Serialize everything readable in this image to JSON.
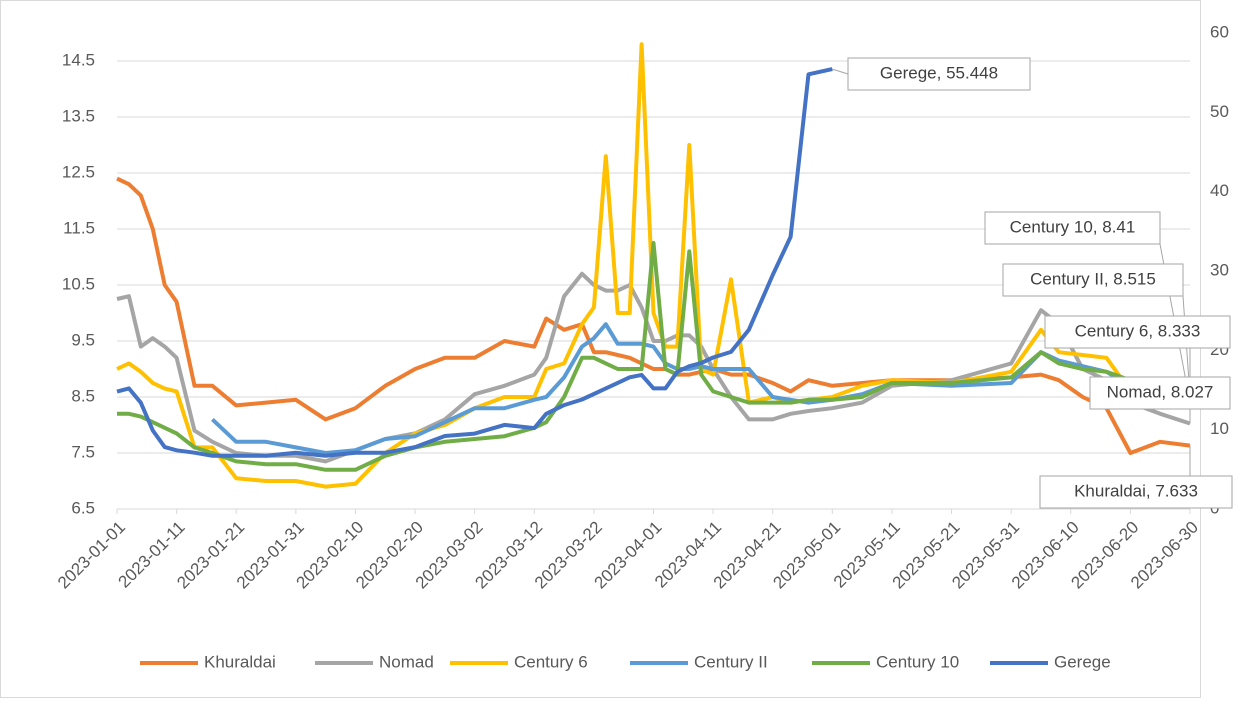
{
  "chart_data": {
    "type": "line",
    "x": [
      "2023-01-01",
      "2023-01-03",
      "2023-01-05",
      "2023-01-07",
      "2023-01-09",
      "2023-01-11",
      "2023-01-14",
      "2023-01-17",
      "2023-01-21",
      "2023-01-26",
      "2023-01-31",
      "2023-02-05",
      "2023-02-10",
      "2023-02-15",
      "2023-02-20",
      "2023-02-25",
      "2023-03-02",
      "2023-03-07",
      "2023-03-12",
      "2023-03-14",
      "2023-03-17",
      "2023-03-20",
      "2023-03-22",
      "2023-03-24",
      "2023-03-26",
      "2023-03-28",
      "2023-03-30",
      "2023-04-01",
      "2023-04-03",
      "2023-04-05",
      "2023-04-07",
      "2023-04-09",
      "2023-04-11",
      "2023-04-14",
      "2023-04-17",
      "2023-04-21",
      "2023-04-24",
      "2023-04-27",
      "2023-05-01",
      "2023-05-06",
      "2023-05-11",
      "2023-05-21",
      "2023-05-31",
      "2023-06-05",
      "2023-06-08",
      "2023-06-12",
      "2023-06-16",
      "2023-06-20",
      "2023-06-25",
      "2023-06-30"
    ],
    "xlim": [
      "2023-01-01",
      "2023-06-30"
    ],
    "xticks": [
      "2023-01-01",
      "2023-01-11",
      "2023-01-21",
      "2023-01-31",
      "2023-02-10",
      "2023-02-20",
      "2023-03-02",
      "2023-03-12",
      "2023-03-22",
      "2023-04-01",
      "2023-04-11",
      "2023-04-21",
      "2023-05-01",
      "2023-05-11",
      "2023-05-21",
      "2023-05-31",
      "2023-06-10",
      "2023-06-20",
      "2023-06-30"
    ],
    "ylim": [
      6.5,
      15
    ],
    "yticks": [
      6.5,
      7.5,
      8.5,
      9.5,
      10.5,
      11.5,
      12.5,
      13.5,
      14.5
    ],
    "y2lim": [
      0,
      60
    ],
    "y2ticks": [
      0,
      10,
      20,
      30,
      40,
      50,
      60
    ],
    "grid": true,
    "legend": "bottom",
    "series": [
      {
        "name": "Khuraldai",
        "color": "#ed7d31",
        "values": [
          12.4,
          12.3,
          12.1,
          11.5,
          10.5,
          10.2,
          8.7,
          8.7,
          8.35,
          8.4,
          8.45,
          8.1,
          8.3,
          8.7,
          9.0,
          9.2,
          9.2,
          9.5,
          9.4,
          9.9,
          9.7,
          9.8,
          9.3,
          9.3,
          9.25,
          9.2,
          9.1,
          9.0,
          9.0,
          8.9,
          8.9,
          8.95,
          9.0,
          8.9,
          8.9,
          8.75,
          8.6,
          8.8,
          8.7,
          8.75,
          8.8,
          8.8,
          8.85,
          8.9,
          8.8,
          8.5,
          8.3,
          7.5,
          7.7,
          7.633
        ]
      },
      {
        "name": "Nomad",
        "color": "#a5a5a5",
        "values": [
          10.25,
          10.3,
          9.4,
          9.55,
          9.4,
          9.2,
          7.9,
          7.7,
          7.5,
          7.45,
          7.45,
          7.35,
          7.55,
          7.75,
          7.85,
          8.1,
          8.55,
          8.7,
          8.9,
          9.2,
          10.3,
          10.7,
          10.5,
          10.4,
          10.4,
          10.5,
          10.1,
          9.5,
          9.5,
          9.6,
          9.6,
          9.4,
          9.0,
          8.5,
          8.1,
          8.1,
          8.2,
          8.25,
          8.3,
          8.4,
          8.7,
          8.8,
          9.1,
          10.05,
          9.8,
          9.0,
          8.8,
          8.4,
          8.2,
          8.027
        ]
      },
      {
        "name": "Century 6",
        "color": "#ffc000",
        "values": [
          9.0,
          9.1,
          8.95,
          8.75,
          8.65,
          8.6,
          7.6,
          7.6,
          7.05,
          7.0,
          7.0,
          6.9,
          6.95,
          7.5,
          7.85,
          8.0,
          8.3,
          8.5,
          8.5,
          9.0,
          9.1,
          9.8,
          10.1,
          12.8,
          10.0,
          10.0,
          14.8,
          10.0,
          9.4,
          9.4,
          13.0,
          9.0,
          8.9,
          10.6,
          8.4,
          8.5,
          8.4,
          8.45,
          8.5,
          8.7,
          8.8,
          8.75,
          8.95,
          9.7,
          9.3,
          9.25,
          9.2,
          8.6,
          8.45,
          8.333
        ]
      },
      {
        "name": "Century II",
        "color": "#5b9bd5",
        "values": [
          null,
          null,
          null,
          null,
          null,
          null,
          null,
          8.1,
          7.7,
          7.7,
          7.6,
          7.5,
          7.55,
          7.75,
          7.8,
          8.05,
          8.3,
          8.3,
          8.45,
          8.5,
          8.85,
          9.4,
          9.55,
          9.8,
          9.45,
          9.45,
          9.45,
          9.4,
          9.1,
          9.0,
          9.0,
          9.05,
          9.0,
          9.0,
          9.0,
          8.5,
          8.45,
          8.4,
          8.45,
          8.55,
          8.75,
          8.7,
          8.75,
          9.3,
          9.15,
          9.05,
          8.95,
          8.7,
          8.6,
          8.515
        ]
      },
      {
        "name": "Century 10",
        "color": "#70ad47",
        "values": [
          8.2,
          8.2,
          8.15,
          8.05,
          7.95,
          7.85,
          7.6,
          7.5,
          7.35,
          7.3,
          7.3,
          7.2,
          7.2,
          7.45,
          7.6,
          7.7,
          7.75,
          7.8,
          7.95,
          8.05,
          8.5,
          9.2,
          9.2,
          9.1,
          9.0,
          9.0,
          9.0,
          11.25,
          9.0,
          8.9,
          11.1,
          8.9,
          8.6,
          8.5,
          8.4,
          8.4,
          8.4,
          8.45,
          8.45,
          8.5,
          8.75,
          8.75,
          8.85,
          9.3,
          9.1,
          9.0,
          8.95,
          8.8,
          8.6,
          8.41
        ]
      },
      {
        "name": "Gerege",
        "color": "#4472c4",
        "axis": "y2",
        "values": [
          14.8,
          15.2,
          13.4,
          9.9,
          7.8,
          7.4,
          7.1,
          6.7,
          6.7,
          6.7,
          7.1,
          6.7,
          7.1,
          7.1,
          7.8,
          9.2,
          9.5,
          10.6,
          10.2,
          12.0,
          13.1,
          13.8,
          14.5,
          15.2,
          15.9,
          16.6,
          16.9,
          15.2,
          15.2,
          17.3,
          18.0,
          18.4,
          19.1,
          19.8,
          22.6,
          29.5,
          34.3,
          54.8,
          55.448,
          null,
          null,
          null,
          null,
          null,
          null,
          null,
          null,
          null,
          null,
          null
        ]
      }
    ],
    "annotations": [
      "Gerege, 55.448",
      "Century 10, 8.41",
      "Century II, 8.515",
      "Century 6, 8.333",
      "Nomad, 8.027",
      "Khuraldai, 7.633"
    ]
  }
}
